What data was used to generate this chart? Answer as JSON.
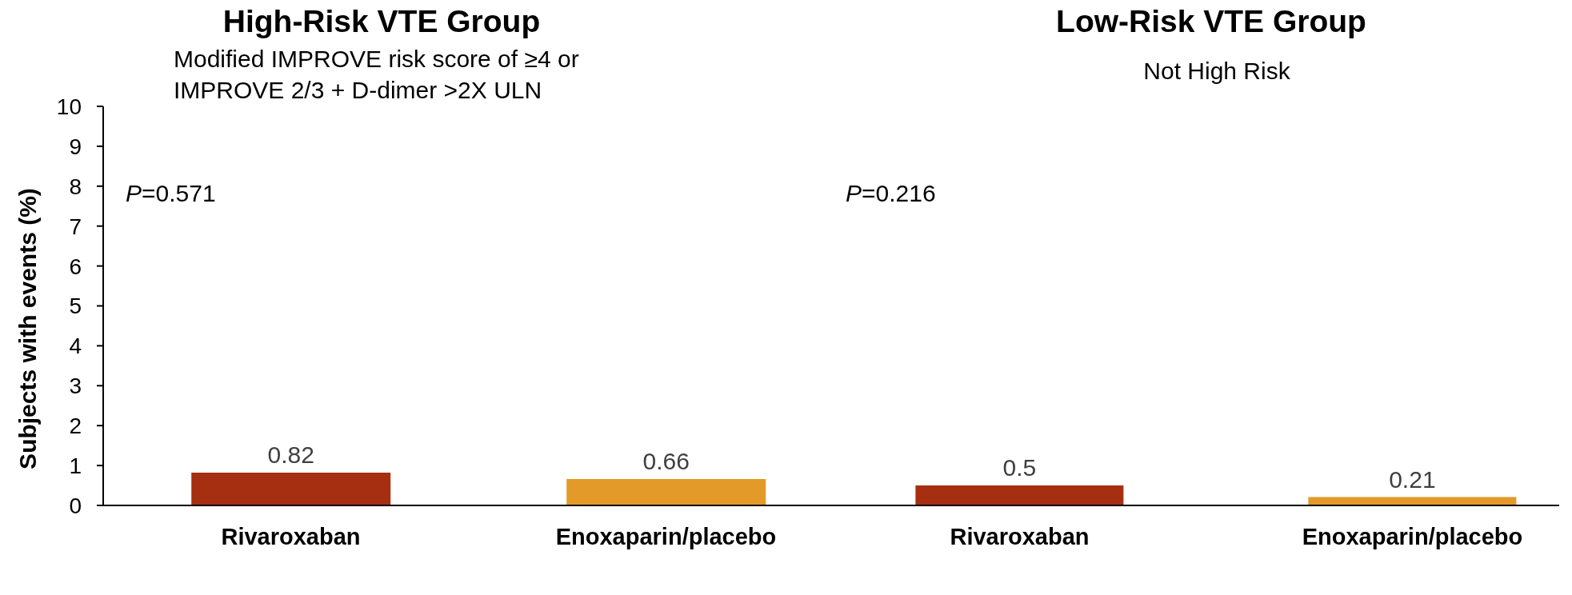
{
  "chart_data": [
    {
      "type": "bar",
      "title": "High-Risk VTE Group",
      "subtitle": "Modified IMPROVE risk score of ≥4 or IMPROVE 2/3 + D-dimer >2X ULN",
      "ylabel": "Subjects with events (%)",
      "categories": [
        "Rivaroxaban",
        "Enoxaparin/placebo"
      ],
      "values": [
        0.82,
        0.66
      ],
      "colors": [
        "#a62f11",
        "#e39a29"
      ],
      "ylim": [
        0,
        10
      ],
      "yticks": [
        0,
        1,
        2,
        3,
        4,
        5,
        6,
        7,
        8,
        9,
        10
      ],
      "data_labels": true,
      "annotations": [
        "P=0.571"
      ]
    },
    {
      "type": "bar",
      "title": "Low-Risk VTE Group",
      "subtitle": "Not High Risk",
      "categories": [
        "Rivaroxaban",
        "Enoxaparin/placebo"
      ],
      "values": [
        0.5,
        0.21
      ],
      "colors": [
        "#a62f11",
        "#e39a29"
      ],
      "ylim": [
        0,
        10
      ],
      "tick_labels": "x",
      "data_labels": true,
      "annotations": [
        "P=0.216"
      ]
    }
  ]
}
